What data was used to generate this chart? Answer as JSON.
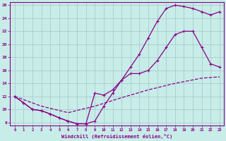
{
  "xlabel": "Windchill (Refroidissement éolien,°C)",
  "xlim": [
    -0.5,
    23.5
  ],
  "ylim": [
    7.5,
    26.5
  ],
  "xticks": [
    0,
    1,
    2,
    3,
    4,
    5,
    6,
    7,
    8,
    9,
    10,
    11,
    12,
    13,
    14,
    15,
    16,
    17,
    18,
    19,
    20,
    21,
    22,
    23
  ],
  "yticks": [
    8,
    10,
    12,
    14,
    16,
    18,
    20,
    22,
    24,
    26
  ],
  "bg_color": "#c8ece8",
  "line_color": "#880088",
  "grid_color": "#a0c8c8",
  "line1_x": [
    0,
    1,
    2,
    3,
    4,
    5,
    6,
    7,
    8,
    9,
    10,
    11,
    12,
    13,
    14,
    15,
    16,
    17,
    18,
    19,
    20,
    21,
    22,
    23
  ],
  "line1_y": [
    12,
    11,
    10,
    9.8,
    9.3,
    8.7,
    8.2,
    7.8,
    7.8,
    8.2,
    10.5,
    12.5,
    14.5,
    16.5,
    18.5,
    21.0,
    23.5,
    25.5,
    26.0,
    25.8,
    25.5,
    25.0,
    24.5,
    25.0
  ],
  "line2_x": [
    0,
    1,
    2,
    3,
    4,
    5,
    6,
    7,
    8,
    9,
    10,
    11,
    12,
    13,
    14,
    15,
    16,
    17,
    18,
    19,
    20,
    21,
    22,
    23
  ],
  "line2_y": [
    12,
    11,
    10,
    9.8,
    9.3,
    8.7,
    8.2,
    7.8,
    7.8,
    12.5,
    12.2,
    13.0,
    14.5,
    15.5,
    15.5,
    16.0,
    17.5,
    19.5,
    21.5,
    22.0,
    22.0,
    19.5,
    17.0,
    16.5
  ],
  "line3_x": [
    0,
    3,
    6,
    9,
    12,
    15,
    18,
    21,
    23
  ],
  "line3_y": [
    12,
    10.5,
    9.5,
    10.5,
    11.8,
    13.0,
    14.0,
    14.8,
    15.0
  ]
}
